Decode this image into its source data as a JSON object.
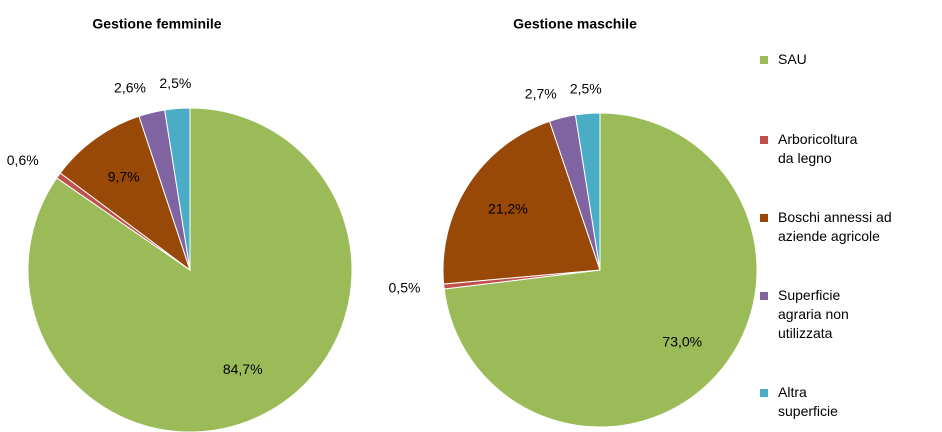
{
  "chart_data": [
    {
      "type": "pie",
      "title": "Gestione femminile",
      "categories": [
        "SAU",
        "Arboricoltura\nda legno",
        "Boschi annessi ad\naziende agricole",
        "Superficie\nagraria non\nutilizzata",
        "Altra\nsuperficie"
      ],
      "colors": [
        "#9bbb59",
        "#c0504d",
        "#984807",
        "#8064a2",
        "#4bacc6"
      ],
      "values": [
        84.7,
        0.6,
        9.7,
        2.6,
        2.5
      ],
      "value_labels": [
        "84,7%",
        "0,6%",
        "9,7%",
        "2,6%",
        "2,5%"
      ]
    },
    {
      "type": "pie",
      "title": "Gestione maschile",
      "values": [
        73.0,
        0.5,
        21.2,
        2.7,
        2.5
      ],
      "value_labels": [
        "73,0%",
        "0,5%",
        "21,2%",
        "2,7%",
        "2,5%"
      ]
    }
  ]
}
